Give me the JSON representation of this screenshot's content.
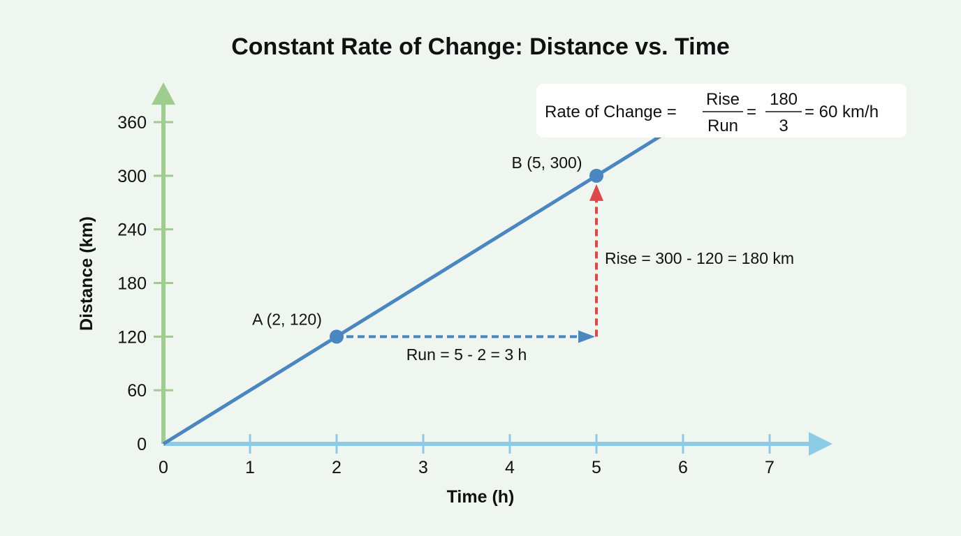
{
  "chart_data": {
    "type": "line",
    "title": "Constant Rate of Change: Distance vs. Time",
    "xlabel": "Time (h)",
    "ylabel": "Distance (km)",
    "xlim": [
      0,
      7
    ],
    "ylim": [
      0,
      360
    ],
    "x_ticks": [
      0,
      1,
      2,
      3,
      4,
      5,
      6,
      7
    ],
    "y_ticks": [
      0,
      60,
      120,
      180,
      240,
      300,
      360
    ],
    "grid": false,
    "series": [
      {
        "x": [
          0,
          6
        ],
        "y": [
          0,
          360
        ],
        "color": "#4a86c0"
      }
    ],
    "points": [
      {
        "label": "A (2, 120)",
        "x": 2,
        "y": 120
      },
      {
        "label": "B (5, 300)",
        "x": 5,
        "y": 300
      }
    ],
    "run": {
      "label": "Run = 5 - 2 = 3 h",
      "from": [
        2,
        120
      ],
      "to": [
        5,
        120
      ],
      "color": "#4a86c0"
    },
    "rise": {
      "label": "Rise = 300 - 120 = 180 km",
      "from": [
        5,
        120
      ],
      "to": [
        5,
        300
      ],
      "color": "#e04848"
    },
    "formula": {
      "prefix": "Rate of Change =",
      "frac1_num": "Rise",
      "frac1_den": "Run",
      "eq": "=",
      "frac2_num": "180",
      "frac2_den": "3",
      "suffix": "= 60 km/h"
    },
    "colors": {
      "y_axis": "#9fcd8f",
      "x_axis": "#8ccbe6",
      "line": "#4a86c0",
      "rise": "#e04848"
    }
  }
}
